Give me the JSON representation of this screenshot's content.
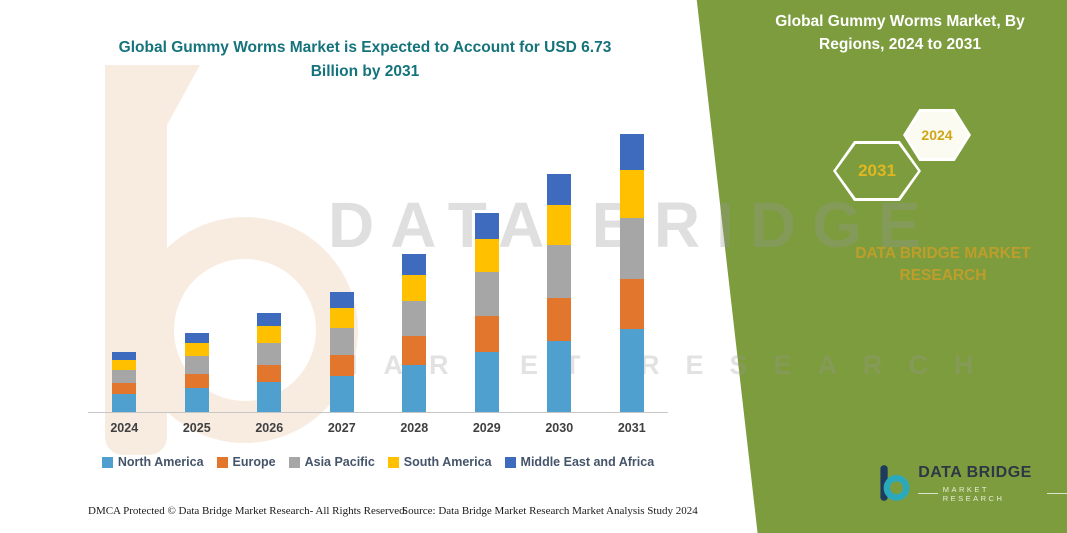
{
  "left": {
    "title": "Global Gummy Worms Market is Expected to Account for USD 6.73 Billion by 2031"
  },
  "right_panel": {
    "bg": "#7D9C3E",
    "title": "Global Gummy Worms Market, By Regions, 2024 to 2031",
    "badges": [
      {
        "label": "2031"
      },
      {
        "label": "2024"
      }
    ],
    "brand_text": "DATA BRIDGE MARKET RESEARCH"
  },
  "watermark": {
    "line1": "DATA BRIDGE",
    "line2": "MARKET RESEARCH"
  },
  "chart_data": {
    "type": "bar",
    "stacked": true,
    "title": "Global Gummy Worms Market is Expected to Account for USD 6.73 Billion by 2031",
    "categories": [
      "2024",
      "2025",
      "2026",
      "2027",
      "2028",
      "2029",
      "2030",
      "2031"
    ],
    "series": [
      {
        "name": "North America",
        "color": "#4FA0CE",
        "values": [
          0.44,
          0.58,
          0.72,
          0.87,
          1.15,
          1.45,
          1.73,
          2.02
        ]
      },
      {
        "name": "Europe",
        "color": "#E2762D",
        "values": [
          0.26,
          0.35,
          0.43,
          0.52,
          0.69,
          0.87,
          1.04,
          1.21
        ]
      },
      {
        "name": "Asia Pacific",
        "color": "#A6A6A6",
        "values": [
          0.32,
          0.42,
          0.53,
          0.64,
          0.84,
          1.06,
          1.27,
          1.48
        ]
      },
      {
        "name": "South America",
        "color": "#FFC000",
        "values": [
          0.25,
          0.33,
          0.41,
          0.49,
          0.65,
          0.82,
          0.98,
          1.14
        ]
      },
      {
        "name": "Middle East and Africa",
        "color": "#3F6BBF",
        "values": [
          0.19,
          0.25,
          0.3,
          0.38,
          0.5,
          0.63,
          0.74,
          0.88
        ]
      }
    ],
    "totals": [
      1.46,
      1.93,
      2.39,
      2.9,
      3.83,
      4.83,
      5.76,
      6.73
    ],
    "xlabel": "",
    "ylabel": "",
    "ylim": [
      0,
      7
    ],
    "grid": false,
    "legend_position": "bottom"
  },
  "footer": {
    "dmca": "DMCA Protected © Data Bridge Market Research-  All Rights Reserved.",
    "source": "Source: Data Bridge Market Research  Market Analysis Study 2024"
  },
  "footer_logo": {
    "brand": "DATA BRIDGE",
    "tagline": "MARKET RESEARCH"
  }
}
